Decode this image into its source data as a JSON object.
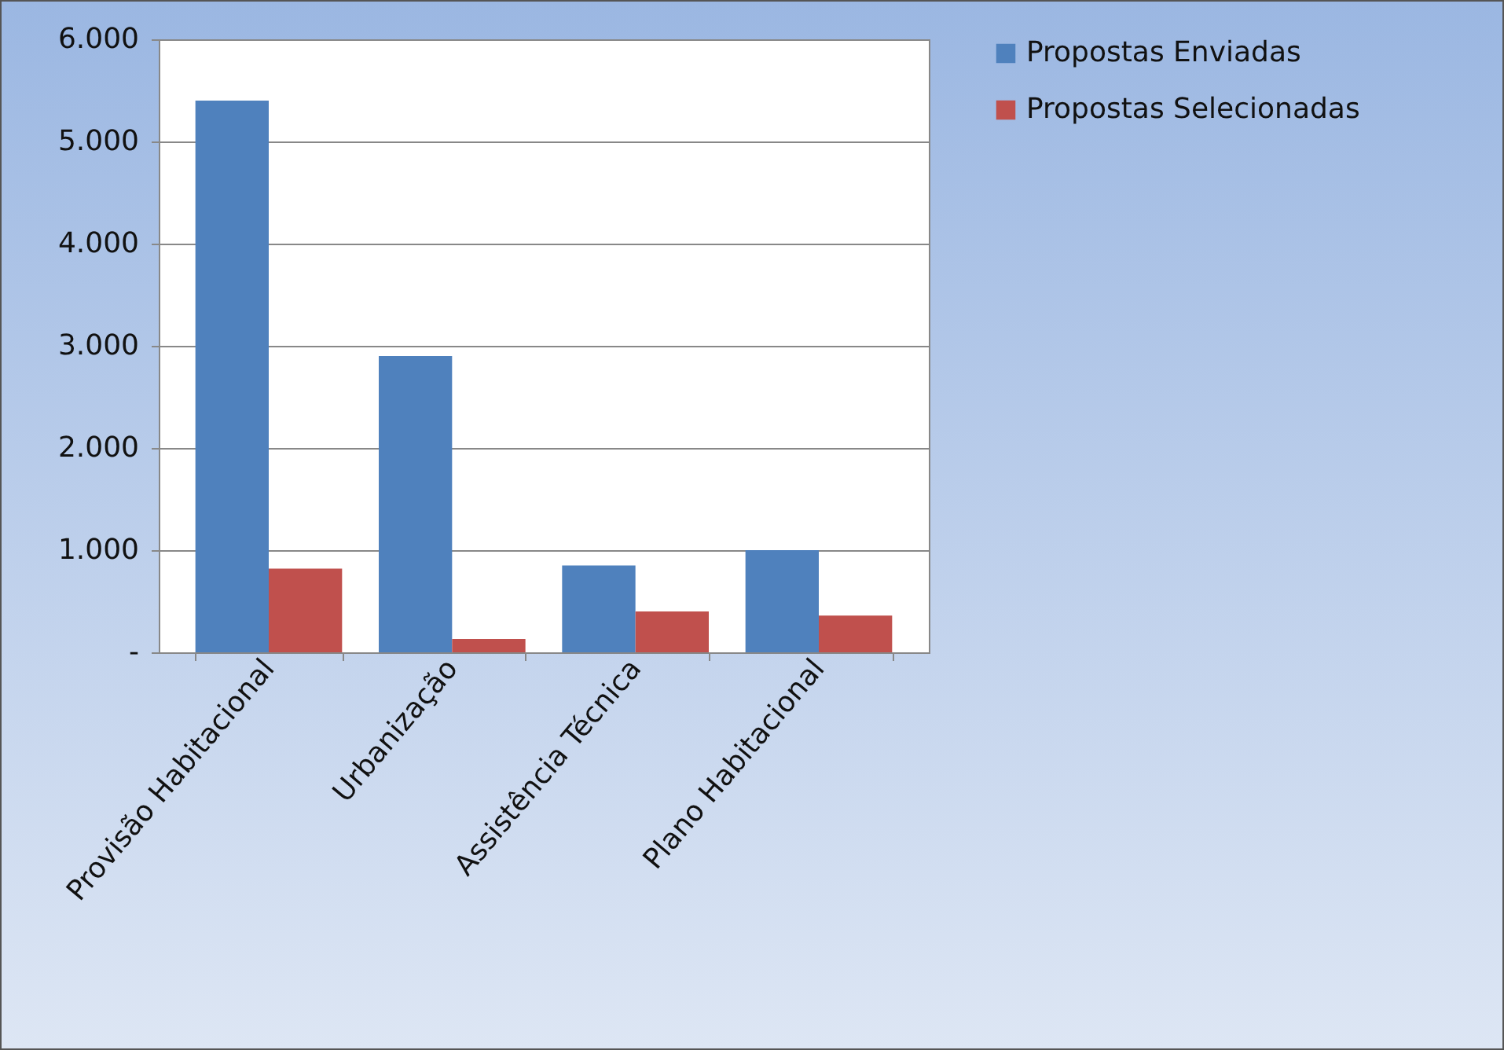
{
  "chart_data": {
    "type": "bar",
    "categories": [
      "Provisão Habitacional",
      "Urbanização",
      "Assistência Técnica",
      "Plano Habitacional"
    ],
    "series": [
      {
        "name": "Propostas Enviadas",
        "color": "#4f81bd",
        "values": [
          5400,
          2900,
          850,
          1000
        ]
      },
      {
        "name": "Propostas Selecionadas",
        "color": "#c0504d",
        "values": [
          820,
          130,
          400,
          360
        ]
      }
    ],
    "ylim": [
      0,
      6000
    ],
    "yticks": [
      {
        "value": 0,
        "label": "-"
      },
      {
        "value": 1000,
        "label": "1.000"
      },
      {
        "value": 2000,
        "label": "2.000"
      },
      {
        "value": 3000,
        "label": "3.000"
      },
      {
        "value": 4000,
        "label": "4.000"
      },
      {
        "value": 5000,
        "label": "5.000"
      },
      {
        "value": 6000,
        "label": "6.000"
      }
    ],
    "grid": "y",
    "legend": "right"
  }
}
